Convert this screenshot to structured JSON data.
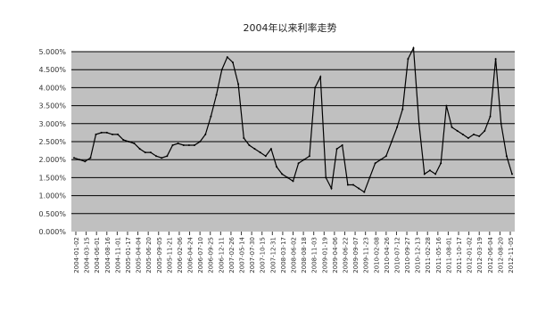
{
  "chart_data": {
    "type": "line",
    "title": "2004年以来利率走势",
    "xlabel": "",
    "ylabel": "",
    "ylim": [
      0,
      5
    ],
    "y_ticks": [
      "0.000%",
      "0.500%",
      "1.000%",
      "1.500%",
      "2.000%",
      "2.500%",
      "3.000%",
      "3.500%",
      "4.000%",
      "4.500%",
      "5.000%"
    ],
    "x_ticks": [
      "2004-01-02",
      "2004-03-15",
      "2004-06-01",
      "2004-08-16",
      "2004-11-01",
      "2005-01-17",
      "2005-04-04",
      "2005-06-20",
      "2005-09-05",
      "2005-11-21",
      "2006-02-06",
      "2006-04-24",
      "2006-07-10",
      "2006-09-25",
      "2006-12-11",
      "2007-02-26",
      "2007-05-14",
      "2007-07-30",
      "2007-10-15",
      "2007-12-31",
      "2008-03-17",
      "2008-06-02",
      "2008-08-18",
      "2008-11-03",
      "2009-01-19",
      "2009-04-06",
      "2009-06-22",
      "2009-09-07",
      "2009-11-23",
      "2010-02-08",
      "2010-04-26",
      "2010-07-12",
      "2010-09-27",
      "2010-12-13",
      "2011-02-28",
      "2011-05-16",
      "2011-08-01",
      "2011-10-17",
      "2012-01-02",
      "2012-03-19",
      "2012-06-04",
      "2012-08-20",
      "2012-11-05"
    ],
    "grid": true,
    "legend": "none",
    "colors": {
      "plot_bg": "#c0c0c0",
      "line": "#000000",
      "grid": "#000000"
    },
    "series": [
      {
        "values": [
          2.05,
          2.0,
          1.95,
          2.05,
          2.7,
          2.75,
          2.75,
          2.7,
          2.7,
          2.55,
          2.5,
          2.45,
          2.3,
          2.2,
          2.2,
          2.1,
          2.05,
          2.1,
          2.4,
          2.45,
          2.4,
          2.4,
          2.4,
          2.5,
          2.7,
          3.2,
          3.8,
          4.5,
          4.85,
          4.7,
          4.1,
          2.6,
          2.4,
          2.3,
          2.2,
          2.1,
          2.3,
          1.8,
          1.6,
          1.5,
          1.4,
          1.9,
          2.0,
          2.1,
          4.0,
          4.3,
          1.5,
          1.2,
          2.3,
          2.4,
          1.3,
          1.3,
          1.2,
          1.1,
          1.5,
          1.9,
          2.0,
          2.1,
          2.5,
          2.9,
          3.4,
          4.8,
          5.1,
          3.0,
          1.6,
          1.7,
          1.6,
          1.9,
          3.5,
          2.9,
          2.8,
          2.7,
          2.6,
          2.7,
          2.65,
          2.8,
          3.2,
          4.8,
          3.0,
          2.1,
          1.6
        ]
      }
    ]
  }
}
